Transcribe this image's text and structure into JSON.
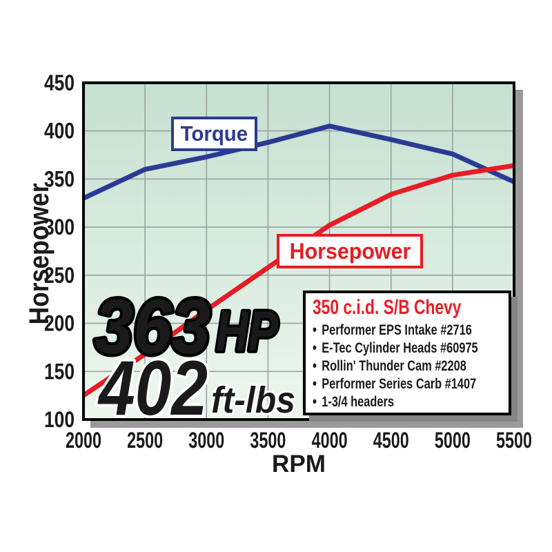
{
  "chart_data": {
    "type": "line",
    "title": "",
    "xlabel": "RPM",
    "ylabel": "Horsepower",
    "xlim": [
      2000,
      5500
    ],
    "ylim": [
      100,
      450
    ],
    "x_ticks": [
      2000,
      2500,
      3000,
      3500,
      4000,
      4500,
      5000,
      5500
    ],
    "y_ticks": [
      100,
      150,
      200,
      250,
      300,
      350,
      400,
      450
    ],
    "grid": true,
    "legend_position": "on-curve-boxes",
    "series": [
      {
        "name": "Torque",
        "color": "#2b3a94",
        "x": [
          2000,
          2500,
          3000,
          3500,
          4000,
          4500,
          5000,
          5500
        ],
        "values": [
          330,
          360,
          373,
          388,
          405,
          391,
          376,
          347
        ]
      },
      {
        "name": "Horsepower",
        "color": "#e81c24",
        "x": [
          2000,
          2500,
          3000,
          3500,
          4000,
          4500,
          5000,
          5500
        ],
        "values": [
          125,
          168,
          214,
          258,
          302,
          334,
          354,
          364
        ]
      }
    ],
    "annotations": {
      "peak_hp": {
        "value": "363",
        "unit": "HP"
      },
      "peak_torque": {
        "value": "402",
        "unit": "ft-lbs"
      }
    }
  },
  "spec_card": {
    "title": "350 c.i.d. S/B Chevy",
    "items": [
      "Performer EPS Intake #2716",
      "E-Tec Cylinder Heads #60975",
      "Rollin' Thunder Cam #2208",
      "Performer Series Carb #1407",
      "1-3/4 headers"
    ]
  },
  "colors": {
    "torque_blue": "#2b3a94",
    "hp_red": "#e81c24",
    "plot_bg_top": "#c5e0d1",
    "plot_bg_bottom": "#edf6ef",
    "grid_line": "#97a39c",
    "plot_border": "#000000",
    "plot_shadow": "#9a9a9a",
    "gold_top": "#fffdea",
    "gold_mid": "#ffe96a",
    "gold_deep": "#f9a82a",
    "gold_bottom": "#ee7c17"
  }
}
